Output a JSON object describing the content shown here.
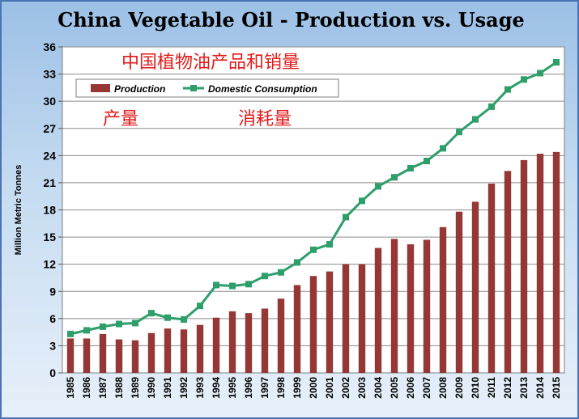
{
  "chart_data": {
    "type": "bar",
    "title": "China Vegetable Oil - Production vs. Usage",
    "ylabel": "Million Metric Tonnes",
    "xlabel": "",
    "ylim": [
      0,
      36
    ],
    "yticks": [
      0,
      3,
      6,
      9,
      12,
      15,
      18,
      21,
      24,
      27,
      30,
      33,
      36
    ],
    "grid": true,
    "legend_position": "top-left",
    "categories": [
      "1985",
      "1986",
      "1987",
      "1988",
      "1989",
      "1990",
      "1991",
      "1992",
      "1993",
      "1994",
      "1995",
      "1996",
      "1997",
      "1998",
      "1999",
      "2000",
      "2001",
      "2002",
      "2003",
      "2004",
      "2005",
      "2006",
      "2007",
      "2008",
      "2009",
      "2010",
      "2011",
      "2012",
      "2013",
      "2014",
      "2015"
    ],
    "series": [
      {
        "name": "Production",
        "type": "bar",
        "color": "#953735",
        "values": [
          3.8,
          3.8,
          4.3,
          3.7,
          3.6,
          4.4,
          4.9,
          4.8,
          5.3,
          6.1,
          6.8,
          6.6,
          7.1,
          8.2,
          9.7,
          10.7,
          11.2,
          12.0,
          12.0,
          13.8,
          14.8,
          14.2,
          14.7,
          16.1,
          17.8,
          18.9,
          20.9,
          22.3,
          23.5,
          24.2,
          24.4
        ]
      },
      {
        "name": "Domestic Consumption",
        "type": "line",
        "color": "#2e9e6b",
        "values": [
          4.3,
          4.7,
          5.1,
          5.4,
          5.5,
          6.6,
          6.1,
          5.9,
          7.4,
          9.7,
          9.6,
          9.8,
          10.7,
          11.1,
          12.2,
          13.6,
          14.2,
          17.2,
          19.0,
          20.6,
          21.6,
          22.6,
          23.4,
          24.8,
          26.6,
          28.0,
          29.4,
          31.3,
          32.4,
          33.1,
          34.3
        ]
      }
    ],
    "annotations": [
      {
        "id": "top",
        "text": "中国植物油产品和销量"
      },
      {
        "id": "production",
        "text": "产量"
      },
      {
        "id": "consumption",
        "text": "消耗量"
      }
    ]
  }
}
